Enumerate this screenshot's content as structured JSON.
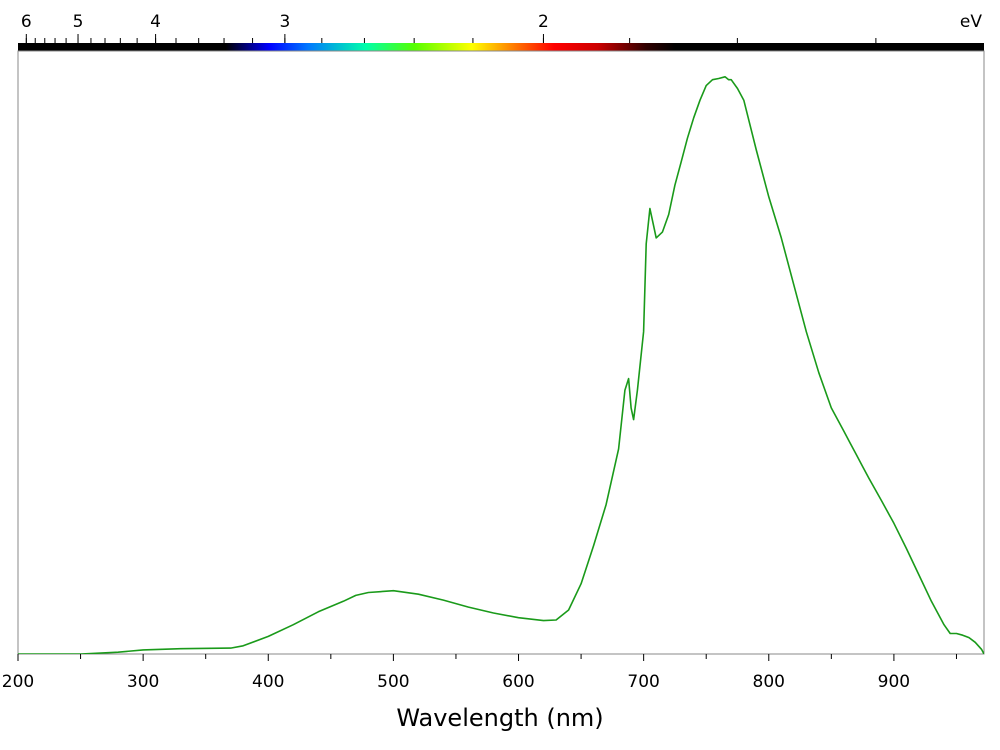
{
  "chart_data": {
    "type": "line",
    "title": "",
    "xlabel": "Wavelength (nm)",
    "ylabel": "",
    "xlim": [
      200,
      972
    ],
    "ylim": [
      0,
      1.0
    ],
    "grid": false,
    "x_ticks": [
      200,
      300,
      400,
      500,
      600,
      700,
      800,
      900
    ],
    "x_tick_labels": [
      "200",
      "300",
      "400",
      "500",
      "600",
      "700",
      "800",
      "900"
    ],
    "top_axis": {
      "unit_label": "eV",
      "ticks": [
        6,
        5,
        4,
        3,
        2
      ],
      "tick_labels": [
        "6",
        "5",
        "4",
        "3",
        "2"
      ]
    },
    "series": [
      {
        "color": "#1a9a1a",
        "x": [
          200,
          250,
          280,
          300,
          330,
          370,
          380,
          400,
          420,
          440,
          460,
          470,
          480,
          500,
          520,
          540,
          560,
          580,
          600,
          620,
          630,
          640,
          650,
          660,
          670,
          680,
          685,
          688,
          690,
          692,
          695,
          700,
          702,
          705,
          708,
          710,
          715,
          720,
          725,
          730,
          735,
          740,
          745,
          750,
          755,
          760,
          765,
          768,
          770,
          775,
          780,
          790,
          800,
          810,
          820,
          830,
          840,
          850,
          860,
          865,
          870,
          875,
          880,
          890,
          900,
          910,
          920,
          930,
          935,
          940,
          945,
          950,
          955,
          960,
          965,
          970,
          972
        ],
        "y": [
          0.0,
          0.0,
          0.003,
          0.007,
          0.009,
          0.01,
          0.014,
          0.03,
          0.05,
          0.072,
          0.09,
          0.1,
          0.105,
          0.108,
          0.102,
          0.092,
          0.08,
          0.07,
          0.062,
          0.057,
          0.058,
          0.075,
          0.12,
          0.185,
          0.255,
          0.35,
          0.45,
          0.47,
          0.42,
          0.4,
          0.45,
          0.55,
          0.7,
          0.76,
          0.73,
          0.71,
          0.72,
          0.75,
          0.8,
          0.84,
          0.88,
          0.915,
          0.945,
          0.97,
          0.98,
          0.982,
          0.985,
          0.98,
          0.98,
          0.965,
          0.945,
          0.86,
          0.78,
          0.71,
          0.63,
          0.55,
          0.48,
          0.42,
          0.38,
          0.36,
          0.34,
          0.32,
          0.3,
          0.262,
          0.223,
          0.18,
          0.135,
          0.09,
          0.07,
          0.05,
          0.035,
          0.035,
          0.032,
          0.028,
          0.02,
          0.008,
          0.0
        ]
      }
    ]
  }
}
